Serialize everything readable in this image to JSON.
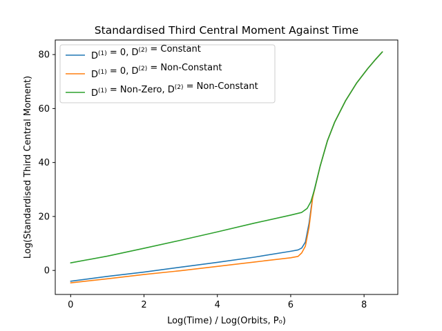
{
  "chart_data": {
    "type": "line",
    "title": "Standardised Third Central Moment Against Time",
    "xlabel": "Log(Time) / Log(Orbits, P₀)",
    "ylabel": "Log(Standardised Third Central Moment)",
    "xlim": [
      -0.42,
      8.92
    ],
    "ylim": [
      -8.9,
      85.4
    ],
    "xticks": [
      0,
      2,
      4,
      6,
      8
    ],
    "yticks": [
      0,
      20,
      40,
      60,
      80
    ],
    "grid": false,
    "legend_position": "upper-left",
    "series": [
      {
        "name": "D(1) = 0, D(2) = Constant",
        "legend_parts": [
          {
            "t": "D",
            "s": "n"
          },
          {
            "t": "(1)",
            "s": "sup"
          },
          {
            "t": " = 0, ",
            "s": "n"
          },
          {
            "t": "D",
            "s": "n"
          },
          {
            "t": "(2)",
            "s": "sup"
          },
          {
            "t": " =  Constant",
            "s": "n"
          }
        ],
        "color": "#1f77b4",
        "points": [
          [
            0,
            -4.0
          ],
          [
            1,
            -2.2
          ],
          [
            2,
            -0.6
          ],
          [
            3,
            1.2
          ],
          [
            4,
            3.0
          ],
          [
            5,
            4.9
          ],
          [
            6,
            7.1
          ],
          [
            6.2,
            7.6
          ],
          [
            6.3,
            8.3
          ],
          [
            6.4,
            10.5
          ],
          [
            6.5,
            17.5
          ],
          [
            6.6,
            27.5
          ],
          [
            6.8,
            38.5
          ],
          [
            7.0,
            48.0
          ],
          [
            7.2,
            55.0
          ],
          [
            7.5,
            63.0
          ],
          [
            7.8,
            69.5
          ],
          [
            8.1,
            74.8
          ],
          [
            8.3,
            78.0
          ],
          [
            8.5,
            81.0
          ]
        ]
      },
      {
        "name": "D(1) = 0, D(2) = Non-Constant",
        "legend_parts": [
          {
            "t": "D",
            "s": "n"
          },
          {
            "t": "(1)",
            "s": "sup"
          },
          {
            "t": " = 0, ",
            "s": "n"
          },
          {
            "t": "D",
            "s": "n"
          },
          {
            "t": "(2)",
            "s": "sup"
          },
          {
            "t": " =  Non-Constant",
            "s": "n"
          }
        ],
        "color": "#ff7f0e",
        "points": [
          [
            0,
            -4.6
          ],
          [
            1,
            -3.1
          ],
          [
            2,
            -1.5
          ],
          [
            3,
            -0.1
          ],
          [
            4,
            1.5
          ],
          [
            5,
            3.1
          ],
          [
            6,
            4.7
          ],
          [
            6.2,
            5.2
          ],
          [
            6.3,
            6.5
          ],
          [
            6.4,
            9.0
          ],
          [
            6.5,
            16.0
          ],
          [
            6.6,
            27.0
          ],
          [
            6.8,
            38.5
          ],
          [
            7.0,
            48.0
          ],
          [
            7.2,
            55.0
          ],
          [
            7.5,
            63.0
          ],
          [
            7.8,
            69.5
          ],
          [
            8.1,
            74.8
          ],
          [
            8.3,
            78.0
          ],
          [
            8.5,
            81.0
          ]
        ]
      },
      {
        "name": "D(1) = Non-Zero, D(2) = Non-Constant",
        "legend_parts": [
          {
            "t": "D",
            "s": "n"
          },
          {
            "t": "(1)",
            "s": "sup"
          },
          {
            "t": " = Non-Zero, ",
            "s": "n"
          },
          {
            "t": "D",
            "s": "n"
          },
          {
            "t": "(2)",
            "s": "sup"
          },
          {
            "t": " =  Non-Constant",
            "s": "n"
          }
        ],
        "color": "#2ca02c",
        "points": [
          [
            0,
            2.8
          ],
          [
            1,
            5.3
          ],
          [
            2,
            8.2
          ],
          [
            3,
            11.2
          ],
          [
            4,
            14.3
          ],
          [
            5,
            17.5
          ],
          [
            6,
            20.5
          ],
          [
            6.3,
            21.5
          ],
          [
            6.45,
            23.0
          ],
          [
            6.55,
            25.5
          ],
          [
            6.65,
            30.0
          ],
          [
            6.8,
            38.5
          ],
          [
            7.0,
            48.0
          ],
          [
            7.2,
            55.0
          ],
          [
            7.5,
            63.0
          ],
          [
            7.8,
            69.5
          ],
          [
            8.1,
            74.8
          ],
          [
            8.3,
            78.0
          ],
          [
            8.5,
            81.0
          ]
        ]
      }
    ]
  }
}
